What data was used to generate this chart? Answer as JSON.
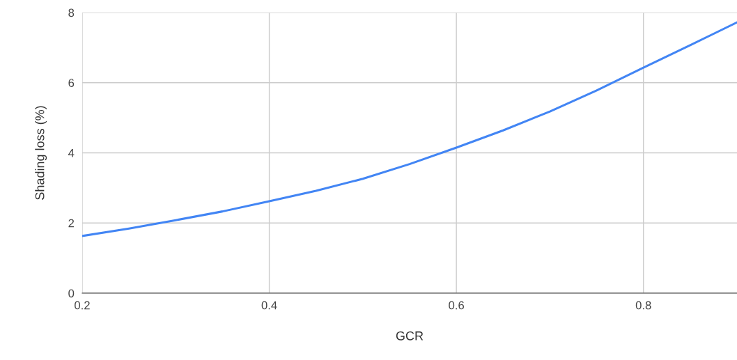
{
  "chart_data": {
    "type": "line",
    "xlabel": "GCR",
    "ylabel": "Shading loss (%)",
    "x": [
      0.2,
      0.25,
      0.3,
      0.35,
      0.4,
      0.45,
      0.5,
      0.55,
      0.6,
      0.65,
      0.7,
      0.75,
      0.8,
      0.85,
      0.9
    ],
    "series": [
      {
        "color": "#4285f4",
        "values": [
          1.63,
          1.84,
          2.08,
          2.33,
          2.62,
          2.92,
          3.26,
          3.68,
          4.15,
          4.64,
          5.18,
          5.78,
          6.43,
          7.07,
          7.72
        ]
      }
    ],
    "xlim": [
      0.2,
      0.9
    ],
    "ylim": [
      0,
      8
    ],
    "xticks": [
      0.2,
      0.4,
      0.6,
      0.8
    ],
    "yticks": [
      0,
      2,
      4,
      6,
      8
    ],
    "grid": true,
    "marker": "none",
    "line_style": "solid"
  }
}
